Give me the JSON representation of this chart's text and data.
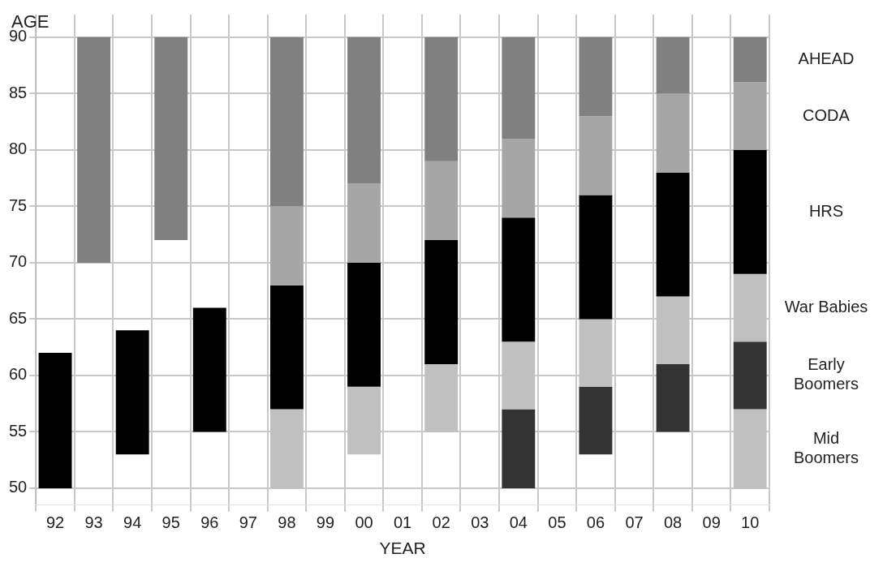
{
  "chart_data": {
    "type": "bar",
    "xlabel": "YEAR",
    "ylabel": "AGE",
    "categories": [
      "92",
      "93",
      "94",
      "95",
      "96",
      "97",
      "98",
      "99",
      "00",
      "01",
      "02",
      "03",
      "04",
      "05",
      "06",
      "07",
      "08",
      "09",
      "10"
    ],
    "series": [
      {
        "name": "AHEAD",
        "color": "#808080",
        "base": [
          null,
          70,
          null,
          72,
          null,
          null,
          75,
          null,
          77,
          null,
          79,
          null,
          81,
          null,
          83,
          null,
          85,
          null,
          86
        ],
        "values": [
          null,
          20,
          null,
          18,
          null,
          null,
          15,
          null,
          13,
          null,
          11,
          null,
          9,
          null,
          7,
          null,
          5,
          null,
          4
        ]
      },
      {
        "name": "CODA",
        "color": "#a6a6a6",
        "base": [
          null,
          null,
          null,
          null,
          null,
          null,
          68,
          null,
          70,
          null,
          72,
          null,
          74,
          null,
          76,
          null,
          78,
          null,
          80
        ],
        "values": [
          null,
          null,
          null,
          null,
          null,
          null,
          7,
          null,
          7,
          null,
          7,
          null,
          7,
          null,
          7,
          null,
          7,
          null,
          6
        ]
      },
      {
        "name": "HRS",
        "color": "#000000",
        "base": [
          50,
          null,
          53,
          null,
          55,
          null,
          57,
          null,
          59,
          null,
          61,
          null,
          63,
          null,
          65,
          null,
          67,
          null,
          69
        ],
        "values": [
          12,
          null,
          11,
          null,
          11,
          null,
          11,
          null,
          11,
          null,
          11,
          null,
          11,
          null,
          11,
          null,
          11,
          null,
          11
        ]
      },
      {
        "name": "War Babies",
        "color": "#c0c0c0",
        "base": [
          null,
          null,
          null,
          null,
          null,
          null,
          50,
          null,
          53,
          null,
          55,
          null,
          57,
          null,
          59,
          null,
          61,
          null,
          63
        ],
        "values": [
          null,
          null,
          null,
          null,
          null,
          null,
          7,
          null,
          6,
          null,
          6,
          null,
          6,
          null,
          6,
          null,
          6,
          null,
          6
        ]
      },
      {
        "name": "Early Boomers",
        "color": "#333333",
        "base": [
          null,
          null,
          null,
          null,
          null,
          null,
          null,
          null,
          null,
          null,
          null,
          null,
          50,
          null,
          53,
          null,
          55,
          null,
          57
        ],
        "values": [
          null,
          null,
          null,
          null,
          null,
          null,
          null,
          null,
          null,
          null,
          null,
          null,
          7,
          null,
          6,
          null,
          6,
          null,
          6
        ]
      },
      {
        "name": "Mid Boomers",
        "color": "#c0c0c0",
        "base": [
          null,
          null,
          null,
          null,
          null,
          null,
          null,
          null,
          null,
          null,
          null,
          null,
          null,
          null,
          null,
          null,
          null,
          null,
          50
        ],
        "values": [
          null,
          null,
          null,
          null,
          null,
          null,
          null,
          null,
          null,
          null,
          null,
          null,
          null,
          null,
          null,
          null,
          null,
          null,
          7
        ]
      }
    ],
    "ylim": [
      48.5,
      92
    ],
    "yticks": [
      50,
      55,
      60,
      65,
      70,
      75,
      80,
      85,
      90
    ],
    "grid": true,
    "legend": false
  }
}
